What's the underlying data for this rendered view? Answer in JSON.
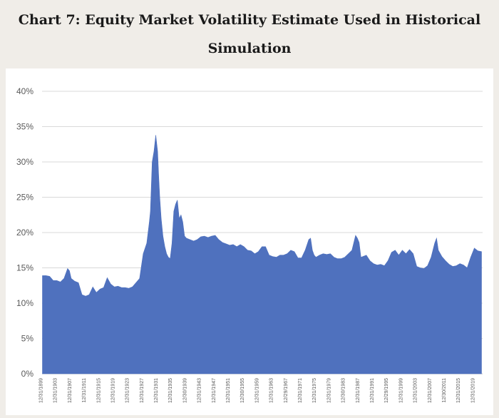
{
  "chart_data": {
    "type": "area",
    "title_line1": "Chart 7: Equity Market Volatility Estimate Used in Historical",
    "title_line2": "Simulation",
    "xlabel": "",
    "ylabel": "",
    "ylim": [
      0,
      40
    ],
    "y_ticks": [
      "0%",
      "5%",
      "10%",
      "15%",
      "20%",
      "25%",
      "30%",
      "35%",
      "40%"
    ],
    "x_tick_labels": [
      "12/31/1899",
      "12/31/1903",
      "12/31/1907",
      "12/31/1911",
      "12/31/1915",
      "12/31/1919",
      "12/31/1923",
      "12/31/1927",
      "12/31/1931",
      "12/31/1935",
      "12/30/1939",
      "12/31/1943",
      "12/31/1947",
      "12/31/1951",
      "12/30/1955",
      "12/31/1959",
      "12/31/1963",
      "12/29/1967",
      "12/31/1971",
      "12/31/1975",
      "12/31/1979",
      "12/30/1983",
      "12/31/1987",
      "12/31/1991",
      "12/29/1995",
      "12/31/1999",
      "12/31/2003",
      "12/31/2007",
      "12/30/2011",
      "12/31/2015",
      "12/31/2019"
    ],
    "series": [
      {
        "name": "Equity Market Volatility",
        "color": "#4f71be",
        "x": [
          1900,
          1901,
          1902,
          1903,
          1904,
          1905,
          1906,
          1907,
          1907.5,
          1908,
          1909,
          1910,
          1911,
          1912,
          1913,
          1914,
          1915,
          1916,
          1917,
          1918,
          1919,
          1920,
          1921,
          1922,
          1923,
          1924,
          1925,
          1926,
          1927,
          1928,
          1929,
          1929.7,
          1930,
          1930.5,
          1931,
          1931.5,
          1932,
          1932.3,
          1932.6,
          1933,
          1933.5,
          1934,
          1934.5,
          1935,
          1935.5,
          1936,
          1936.5,
          1937,
          1937.5,
          1938,
          1938.5,
          1939,
          1939.5,
          1940,
          1941,
          1942,
          1943,
          1944,
          1945,
          1946,
          1947,
          1948,
          1949,
          1950,
          1951,
          1952,
          1953,
          1954,
          1955,
          1956,
          1957,
          1958,
          1959,
          1960,
          1961,
          1962,
          1963,
          1964,
          1965,
          1966,
          1967,
          1968,
          1969,
          1970,
          1971,
          1972,
          1973,
          1974,
          1974.5,
          1975,
          1975.5,
          1976,
          1977,
          1978,
          1979,
          1980,
          1981,
          1982,
          1983,
          1984,
          1985,
          1986,
          1987,
          1987.5,
          1988,
          1988.5,
          1989,
          1990,
          1991,
          1992,
          1993,
          1994,
          1995,
          1996,
          1997,
          1998,
          1999,
          2000,
          2001,
          2002,
          2003,
          2004,
          2005,
          2006,
          2007,
          2008,
          2009,
          2009.5,
          2010,
          2011,
          2012,
          2013,
          2014,
          2015,
          2016,
          2017,
          2018,
          2019,
          2020,
          2021,
          2022
        ],
        "values": [
          13.9,
          13.9,
          13.8,
          13.2,
          13.2,
          13.0,
          13.5,
          14.9,
          14.6,
          13.5,
          13.1,
          12.9,
          11.2,
          11.0,
          11.2,
          12.3,
          11.5,
          12.0,
          12.2,
          13.6,
          12.7,
          12.3,
          12.4,
          12.2,
          12.2,
          12.1,
          12.3,
          12.9,
          13.5,
          17.0,
          18.5,
          21.5,
          23.0,
          30.0,
          31.5,
          33.8,
          31.5,
          28.0,
          25.0,
          22.0,
          19.5,
          18.0,
          17.0,
          16.5,
          16.3,
          18.5,
          23.0,
          24.0,
          24.6,
          22.0,
          22.5,
          21.5,
          19.5,
          19.2,
          19.0,
          18.8,
          19.0,
          19.4,
          19.5,
          19.3,
          19.5,
          19.6,
          19.0,
          18.6,
          18.4,
          18.2,
          18.3,
          18.0,
          18.3,
          18.0,
          17.5,
          17.4,
          17.0,
          17.3,
          18.0,
          18.0,
          16.8,
          16.6,
          16.5,
          16.8,
          16.8,
          17.0,
          17.5,
          17.3,
          16.4,
          16.4,
          17.5,
          19.0,
          19.2,
          17.5,
          16.8,
          16.5,
          16.8,
          17.0,
          16.9,
          17.0,
          16.5,
          16.3,
          16.3,
          16.5,
          17.0,
          17.5,
          19.6,
          19.2,
          18.6,
          16.5,
          16.6,
          16.8,
          16.0,
          15.6,
          15.4,
          15.5,
          15.3,
          16.0,
          17.2,
          17.5,
          16.8,
          17.5,
          17.0,
          17.6,
          17.0,
          15.2,
          15.0,
          14.9,
          15.3,
          16.5,
          18.5,
          19.2,
          17.5,
          16.6,
          16.0,
          15.5,
          15.2,
          15.3,
          15.6,
          15.4,
          15.0,
          16.5,
          17.8,
          17.4,
          17.3
        ]
      }
    ]
  }
}
